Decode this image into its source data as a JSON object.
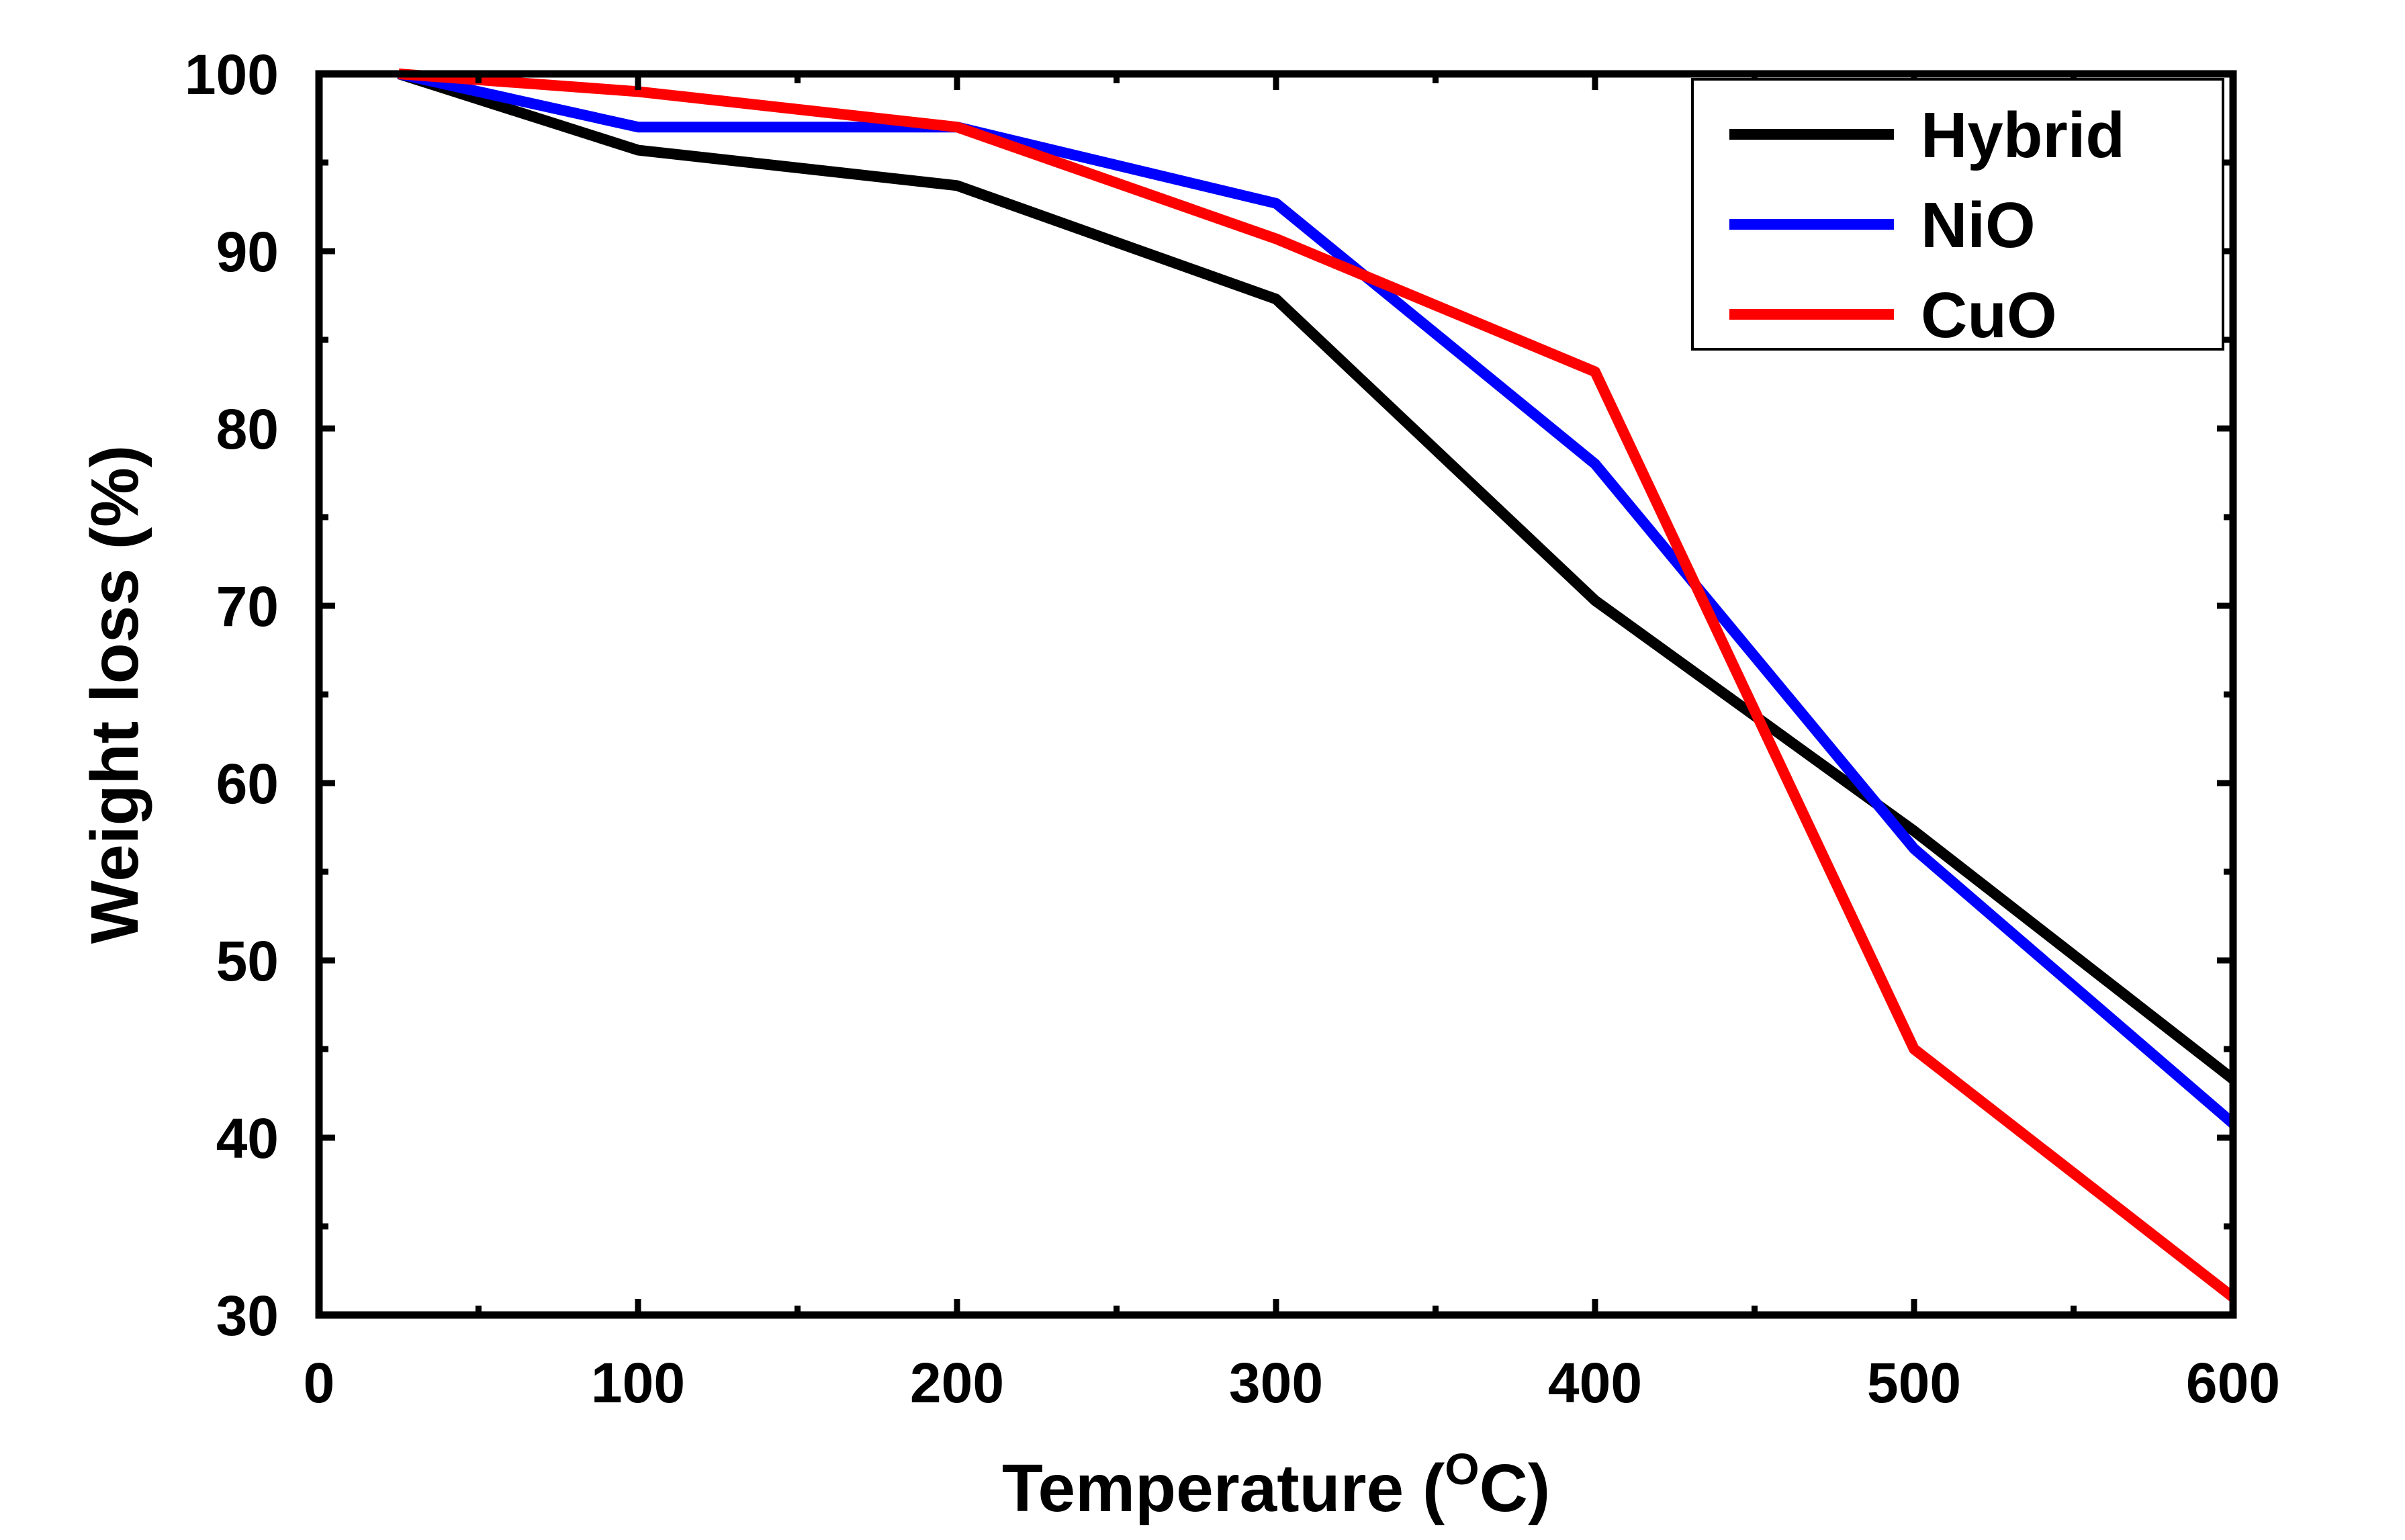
{
  "chart_data": {
    "type": "line",
    "title": "",
    "xlabel": "Temperature",
    "xlabel_unit_open": "(",
    "xlabel_unit_sup": "O",
    "xlabel_unit_rest": "C)",
    "ylabel": "Weight loss (%)",
    "xlim": [
      0,
      600
    ],
    "ylim": [
      30,
      100
    ],
    "xticks": [
      "0",
      "100",
      "200",
      "300",
      "400",
      "500",
      "600"
    ],
    "yticks": [
      "30",
      "40",
      "50",
      "60",
      "70",
      "80",
      "90",
      "100"
    ],
    "grid": false,
    "legend_position": "top-right",
    "series": [
      {
        "name": "Hybrid",
        "color": "#000000",
        "x": [
          25,
          100,
          200,
          300,
          400,
          500,
          600
        ],
        "y": [
          100,
          95.7,
          93.7,
          87.3,
          70.3,
          57.3,
          43.3
        ]
      },
      {
        "name": "NiO",
        "color": "#0000ff",
        "x": [
          25,
          100,
          200,
          300,
          400,
          500,
          600
        ],
        "y": [
          100,
          97.0,
          97.0,
          92.7,
          78.0,
          56.3,
          40.8
        ]
      },
      {
        "name": "CuO",
        "color": "#ff0000",
        "x": [
          25,
          100,
          200,
          300,
          400,
          500,
          600
        ],
        "y": [
          100,
          99.0,
          97.0,
          90.7,
          83.2,
          45.0,
          31.0
        ]
      }
    ]
  }
}
